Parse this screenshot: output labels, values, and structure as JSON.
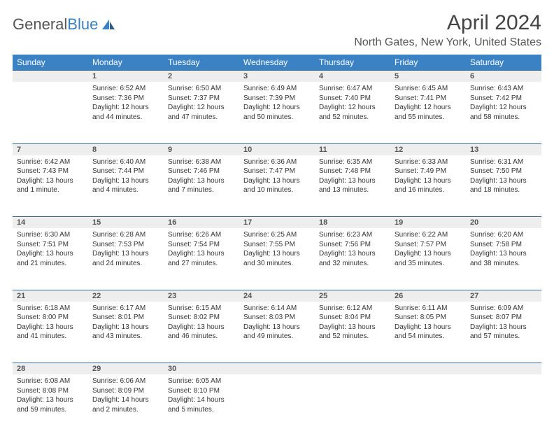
{
  "logo": {
    "text_gray": "General",
    "text_blue": "Blue"
  },
  "title": "April 2024",
  "location": "North Gates, New York, United States",
  "colors": {
    "header_bg": "#3b82c4",
    "header_text": "#ffffff",
    "daynum_bg": "#eeeeee",
    "border": "#3b6a94",
    "body_text": "#333333"
  },
  "day_headers": [
    "Sunday",
    "Monday",
    "Tuesday",
    "Wednesday",
    "Thursday",
    "Friday",
    "Saturday"
  ],
  "weeks": [
    [
      null,
      {
        "n": "1",
        "sr": "6:52 AM",
        "ss": "7:36 PM",
        "dl": "12 hours and 44 minutes."
      },
      {
        "n": "2",
        "sr": "6:50 AM",
        "ss": "7:37 PM",
        "dl": "12 hours and 47 minutes."
      },
      {
        "n": "3",
        "sr": "6:49 AM",
        "ss": "7:39 PM",
        "dl": "12 hours and 50 minutes."
      },
      {
        "n": "4",
        "sr": "6:47 AM",
        "ss": "7:40 PM",
        "dl": "12 hours and 52 minutes."
      },
      {
        "n": "5",
        "sr": "6:45 AM",
        "ss": "7:41 PM",
        "dl": "12 hours and 55 minutes."
      },
      {
        "n": "6",
        "sr": "6:43 AM",
        "ss": "7:42 PM",
        "dl": "12 hours and 58 minutes."
      }
    ],
    [
      {
        "n": "7",
        "sr": "6:42 AM",
        "ss": "7:43 PM",
        "dl": "13 hours and 1 minute."
      },
      {
        "n": "8",
        "sr": "6:40 AM",
        "ss": "7:44 PM",
        "dl": "13 hours and 4 minutes."
      },
      {
        "n": "9",
        "sr": "6:38 AM",
        "ss": "7:46 PM",
        "dl": "13 hours and 7 minutes."
      },
      {
        "n": "10",
        "sr": "6:36 AM",
        "ss": "7:47 PM",
        "dl": "13 hours and 10 minutes."
      },
      {
        "n": "11",
        "sr": "6:35 AM",
        "ss": "7:48 PM",
        "dl": "13 hours and 13 minutes."
      },
      {
        "n": "12",
        "sr": "6:33 AM",
        "ss": "7:49 PM",
        "dl": "13 hours and 16 minutes."
      },
      {
        "n": "13",
        "sr": "6:31 AM",
        "ss": "7:50 PM",
        "dl": "13 hours and 18 minutes."
      }
    ],
    [
      {
        "n": "14",
        "sr": "6:30 AM",
        "ss": "7:51 PM",
        "dl": "13 hours and 21 minutes."
      },
      {
        "n": "15",
        "sr": "6:28 AM",
        "ss": "7:53 PM",
        "dl": "13 hours and 24 minutes."
      },
      {
        "n": "16",
        "sr": "6:26 AM",
        "ss": "7:54 PM",
        "dl": "13 hours and 27 minutes."
      },
      {
        "n": "17",
        "sr": "6:25 AM",
        "ss": "7:55 PM",
        "dl": "13 hours and 30 minutes."
      },
      {
        "n": "18",
        "sr": "6:23 AM",
        "ss": "7:56 PM",
        "dl": "13 hours and 32 minutes."
      },
      {
        "n": "19",
        "sr": "6:22 AM",
        "ss": "7:57 PM",
        "dl": "13 hours and 35 minutes."
      },
      {
        "n": "20",
        "sr": "6:20 AM",
        "ss": "7:58 PM",
        "dl": "13 hours and 38 minutes."
      }
    ],
    [
      {
        "n": "21",
        "sr": "6:18 AM",
        "ss": "8:00 PM",
        "dl": "13 hours and 41 minutes."
      },
      {
        "n": "22",
        "sr": "6:17 AM",
        "ss": "8:01 PM",
        "dl": "13 hours and 43 minutes."
      },
      {
        "n": "23",
        "sr": "6:15 AM",
        "ss": "8:02 PM",
        "dl": "13 hours and 46 minutes."
      },
      {
        "n": "24",
        "sr": "6:14 AM",
        "ss": "8:03 PM",
        "dl": "13 hours and 49 minutes."
      },
      {
        "n": "25",
        "sr": "6:12 AM",
        "ss": "8:04 PM",
        "dl": "13 hours and 52 minutes."
      },
      {
        "n": "26",
        "sr": "6:11 AM",
        "ss": "8:05 PM",
        "dl": "13 hours and 54 minutes."
      },
      {
        "n": "27",
        "sr": "6:09 AM",
        "ss": "8:07 PM",
        "dl": "13 hours and 57 minutes."
      }
    ],
    [
      {
        "n": "28",
        "sr": "6:08 AM",
        "ss": "8:08 PM",
        "dl": "13 hours and 59 minutes."
      },
      {
        "n": "29",
        "sr": "6:06 AM",
        "ss": "8:09 PM",
        "dl": "14 hours and 2 minutes."
      },
      {
        "n": "30",
        "sr": "6:05 AM",
        "ss": "8:10 PM",
        "dl": "14 hours and 5 minutes."
      },
      null,
      null,
      null,
      null
    ]
  ],
  "labels": {
    "sunrise": "Sunrise:",
    "sunset": "Sunset:",
    "daylight": "Daylight:"
  }
}
